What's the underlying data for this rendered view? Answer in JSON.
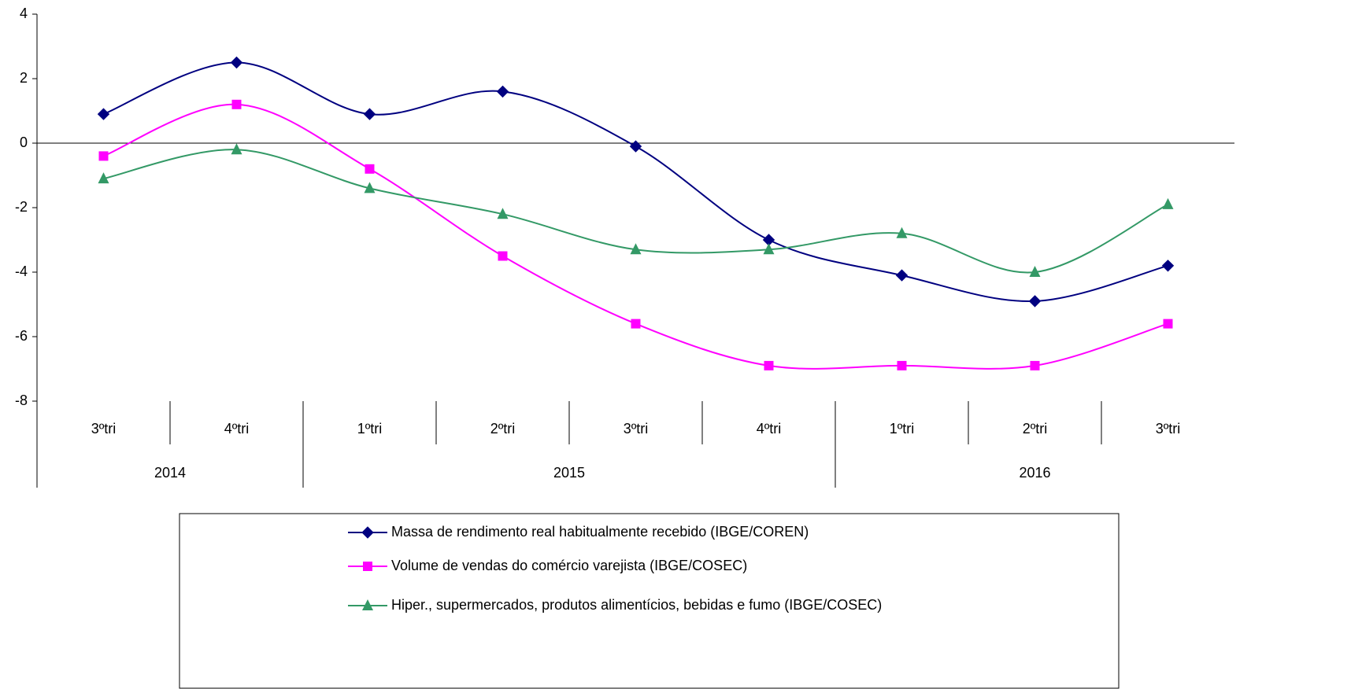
{
  "chart_data": {
    "type": "line",
    "smooth": true,
    "categories": [
      "3ºtri",
      "4ºtri",
      "1ºtri",
      "2ºtri",
      "3ºtri",
      "4ºtri",
      "1ºtri",
      "2ºtri",
      "3ºtri"
    ],
    "groups": [
      {
        "label": "2014",
        "count": 2
      },
      {
        "label": "2015",
        "count": 4
      },
      {
        "label": "2016",
        "count": 3
      }
    ],
    "series": [
      {
        "name": "Massa de rendimento real habitualmente recebido (IBGE/COREN)",
        "color": "#000080",
        "marker": "diamond",
        "values": [
          0.9,
          2.5,
          0.9,
          1.6,
          -0.1,
          -3.0,
          -4.1,
          -4.9,
          -3.8
        ]
      },
      {
        "name": "Volume de vendas do comércio varejista (IBGE/COSEC)",
        "color": "#ff00ff",
        "marker": "square",
        "values": [
          -0.4,
          1.2,
          -0.8,
          -3.5,
          -5.6,
          -6.9,
          -6.9,
          -6.9,
          -5.6
        ]
      },
      {
        "name": "Hiper., supermercados, produtos alimentícios, bebidas e fumo (IBGE/COSEC)",
        "color": "#339966",
        "marker": "triangle",
        "values": [
          -1.1,
          -0.2,
          -1.4,
          -2.2,
          -3.3,
          -3.3,
          -2.8,
          -4.0,
          -1.9
        ]
      }
    ],
    "ylim": [
      -8,
      4
    ],
    "yticks": [
      -8,
      -6,
      -4,
      -2,
      0,
      2,
      4
    ],
    "grid": false,
    "legend": "bottom"
  }
}
